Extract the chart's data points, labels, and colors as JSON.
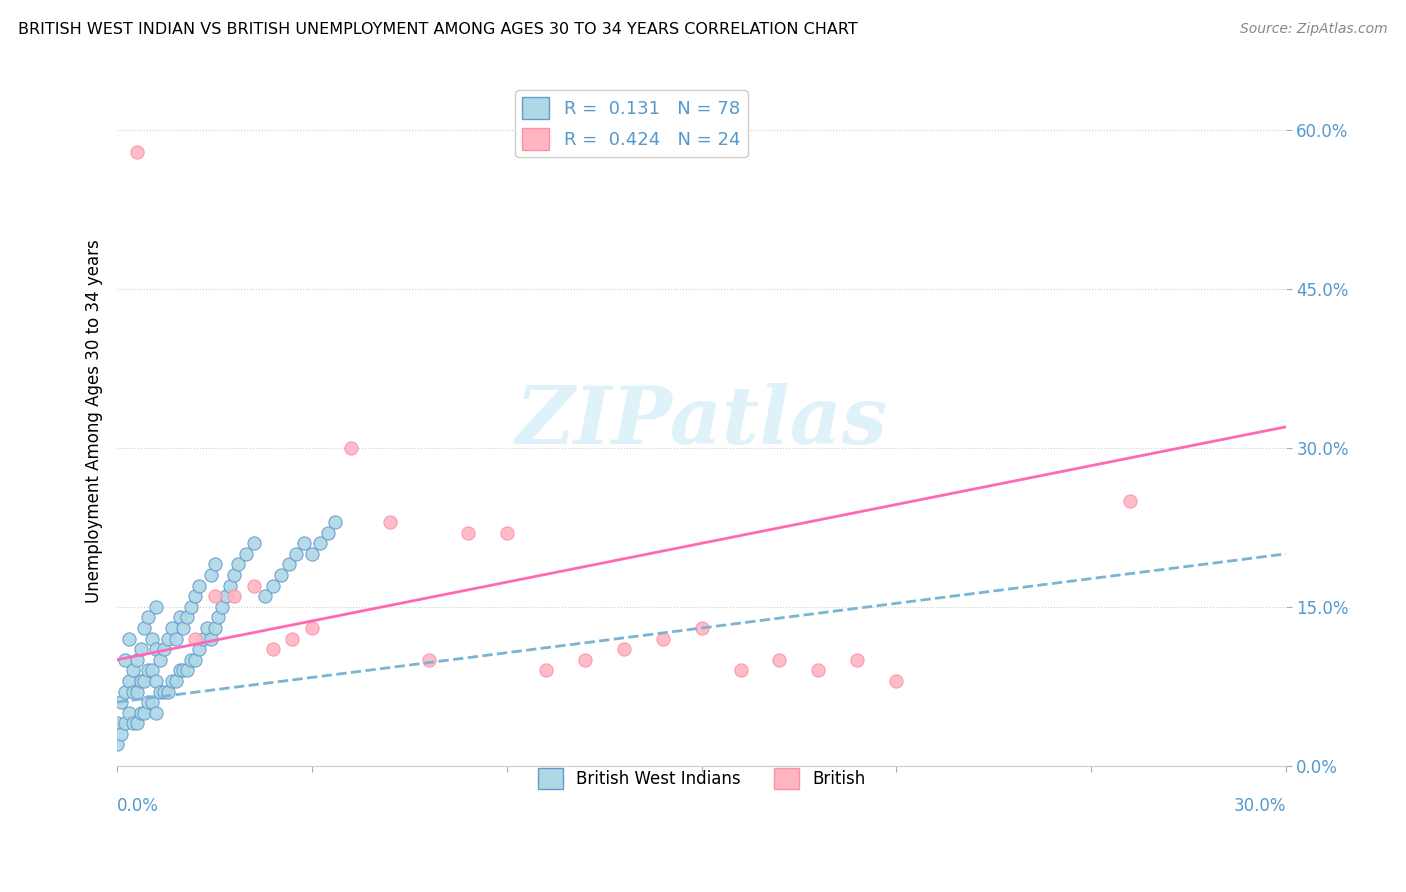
{
  "title": "BRITISH WEST INDIAN VS BRITISH UNEMPLOYMENT AMONG AGES 30 TO 34 YEARS CORRELATION CHART",
  "source": "Source: ZipAtlas.com",
  "ylabel": "Unemployment Among Ages 30 to 34 years",
  "ytick_labels": [
    "0.0%",
    "15.0%",
    "30.0%",
    "45.0%",
    "60.0%"
  ],
  "ytick_values": [
    0.0,
    0.15,
    0.3,
    0.45,
    0.6
  ],
  "xlim": [
    0.0,
    0.3
  ],
  "ylim": [
    0.0,
    0.65
  ],
  "blue_color": "#ADD8E6",
  "blue_edge_color": "#6699CC",
  "pink_color": "#FFB6C1",
  "pink_edge_color": "#FF8FAB",
  "trend_blue_color": "#7AB3D4",
  "trend_pink_color": "#FF69B4",
  "watermark": "ZIPatlas",
  "R_blue": 0.131,
  "R_pink": 0.424,
  "N_blue": 78,
  "N_pink": 24,
  "blue_scatter_x": [
    0.0,
    0.0,
    0.001,
    0.001,
    0.002,
    0.002,
    0.002,
    0.003,
    0.003,
    0.003,
    0.004,
    0.004,
    0.004,
    0.005,
    0.005,
    0.005,
    0.006,
    0.006,
    0.006,
    0.007,
    0.007,
    0.007,
    0.008,
    0.008,
    0.008,
    0.009,
    0.009,
    0.009,
    0.01,
    0.01,
    0.01,
    0.01,
    0.011,
    0.011,
    0.012,
    0.012,
    0.013,
    0.013,
    0.014,
    0.014,
    0.015,
    0.015,
    0.016,
    0.016,
    0.017,
    0.017,
    0.018,
    0.018,
    0.019,
    0.019,
    0.02,
    0.02,
    0.021,
    0.021,
    0.022,
    0.023,
    0.024,
    0.024,
    0.025,
    0.025,
    0.026,
    0.027,
    0.028,
    0.029,
    0.03,
    0.031,
    0.033,
    0.035,
    0.038,
    0.04,
    0.042,
    0.044,
    0.046,
    0.048,
    0.05,
    0.052,
    0.054,
    0.056
  ],
  "blue_scatter_y": [
    0.02,
    0.04,
    0.03,
    0.06,
    0.04,
    0.07,
    0.1,
    0.05,
    0.08,
    0.12,
    0.04,
    0.07,
    0.09,
    0.04,
    0.07,
    0.1,
    0.05,
    0.08,
    0.11,
    0.05,
    0.08,
    0.13,
    0.06,
    0.09,
    0.14,
    0.06,
    0.09,
    0.12,
    0.05,
    0.08,
    0.11,
    0.15,
    0.07,
    0.1,
    0.07,
    0.11,
    0.07,
    0.12,
    0.08,
    0.13,
    0.08,
    0.12,
    0.09,
    0.14,
    0.09,
    0.13,
    0.09,
    0.14,
    0.1,
    0.15,
    0.1,
    0.16,
    0.11,
    0.17,
    0.12,
    0.13,
    0.12,
    0.18,
    0.13,
    0.19,
    0.14,
    0.15,
    0.16,
    0.17,
    0.18,
    0.19,
    0.2,
    0.21,
    0.16,
    0.17,
    0.18,
    0.19,
    0.2,
    0.21,
    0.2,
    0.21,
    0.22,
    0.23
  ],
  "pink_scatter_x": [
    0.005,
    0.02,
    0.025,
    0.03,
    0.035,
    0.04,
    0.045,
    0.05,
    0.06,
    0.07,
    0.08,
    0.09,
    0.1,
    0.11,
    0.12,
    0.13,
    0.14,
    0.15,
    0.16,
    0.17,
    0.18,
    0.19,
    0.2,
    0.26
  ],
  "pink_scatter_y": [
    0.58,
    0.12,
    0.16,
    0.16,
    0.17,
    0.11,
    0.12,
    0.13,
    0.3,
    0.23,
    0.1,
    0.22,
    0.22,
    0.09,
    0.1,
    0.11,
    0.12,
    0.13,
    0.09,
    0.1,
    0.09,
    0.1,
    0.08,
    0.25
  ],
  "blue_trend_x": [
    0.0,
    0.3
  ],
  "blue_trend_y": [
    0.06,
    0.2
  ],
  "pink_trend_x": [
    0.0,
    0.3
  ],
  "pink_trend_y": [
    0.1,
    0.32
  ]
}
